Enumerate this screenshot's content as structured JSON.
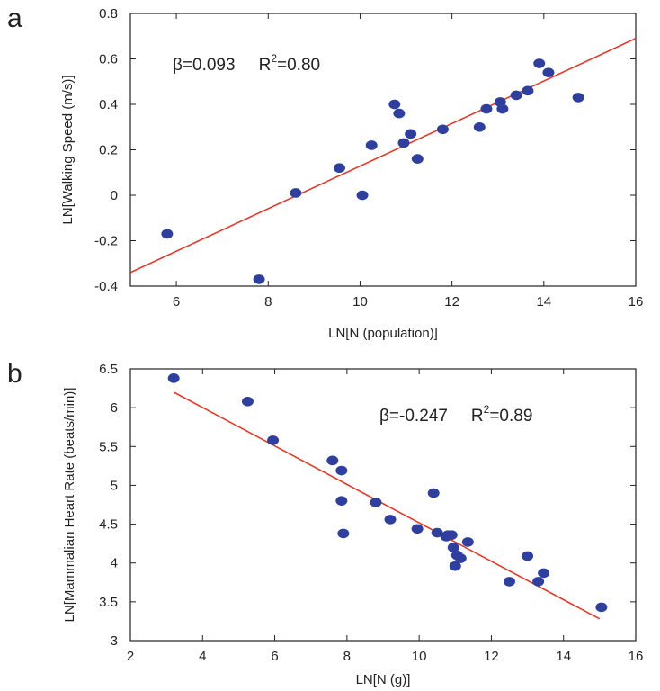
{
  "chart_data": [
    {
      "type": "scatter",
      "panel_label": "a",
      "xlabel": "LN[N (population)]",
      "ylabel": "LN[Walking Speed (m/s)]",
      "xlim": [
        5,
        16
      ],
      "ylim": [
        -0.4,
        0.8
      ],
      "xticks": [
        6,
        8,
        10,
        12,
        14,
        16
      ],
      "yticks": [
        -0.4,
        -0.2,
        0,
        0.2,
        0.4,
        0.6,
        0.8
      ],
      "xtick_labels": [
        "6",
        "8",
        "10",
        "12",
        "14",
        "16"
      ],
      "ytick_labels": [
        "-0.4",
        "-0.2",
        "0",
        "0.2",
        "0.4",
        "0.6",
        "0.8"
      ],
      "grid": false,
      "annotation": {
        "beta": "β=0.093",
        "r2_base": "R",
        "r2_sup": "2",
        "r2_value": "=0.80"
      },
      "fit_line": {
        "x": [
          5,
          16
        ],
        "y": [
          -0.34,
          0.69
        ]
      },
      "point_color": "#2e3f9e",
      "line_color": "#e03a2a",
      "x": [
        5.8,
        7.8,
        8.6,
        9.55,
        10.05,
        10.25,
        10.75,
        10.85,
        10.95,
        11.1,
        11.25,
        11.8,
        12.6,
        12.75,
        13.05,
        13.1,
        13.4,
        13.65,
        13.9,
        14.1,
        14.75
      ],
      "y": [
        -0.17,
        -0.37,
        0.01,
        0.12,
        0.0,
        0.22,
        0.4,
        0.36,
        0.23,
        0.27,
        0.16,
        0.29,
        0.3,
        0.38,
        0.41,
        0.38,
        0.44,
        0.46,
        0.58,
        0.54,
        0.43
      ]
    },
    {
      "type": "scatter",
      "panel_label": "b",
      "xlabel": "LN[N (g)]",
      "ylabel": "LN[Mammalian Heart Rate (beats/min)]",
      "xlim": [
        2,
        16
      ],
      "ylim": [
        3,
        6.5
      ],
      "xticks": [
        2,
        4,
        6,
        8,
        10,
        12,
        14,
        16
      ],
      "yticks": [
        3,
        3.5,
        4,
        4.5,
        5,
        5.5,
        6,
        6.5
      ],
      "xtick_labels": [
        "2",
        "4",
        "6",
        "8",
        "10",
        "12",
        "14",
        "16"
      ],
      "ytick_labels": [
        "3",
        "3.5",
        "4",
        "4.5",
        "5",
        "5.5",
        "6",
        "6.5"
      ],
      "grid": false,
      "annotation": {
        "beta": "β=-0.247",
        "r2_base": "R",
        "r2_sup": "2",
        "r2_value": "=0.89"
      },
      "fit_line": {
        "x": [
          3.2,
          15.0
        ],
        "y": [
          6.2,
          3.28
        ]
      },
      "point_color": "#2e3f9e",
      "line_color": "#e03a2a",
      "x": [
        3.2,
        5.25,
        5.95,
        7.6,
        7.85,
        7.85,
        7.9,
        8.8,
        9.2,
        9.95,
        10.4,
        10.5,
        10.75,
        10.8,
        10.9,
        10.95,
        11.0,
        11.05,
        11.15,
        11.35,
        12.5,
        13.0,
        13.3,
        13.45,
        15.05
      ],
      "y": [
        6.38,
        6.08,
        5.58,
        5.32,
        5.19,
        4.8,
        4.38,
        4.78,
        4.56,
        4.44,
        4.9,
        4.39,
        4.34,
        4.36,
        4.36,
        4.2,
        3.96,
        4.1,
        4.06,
        4.27,
        3.76,
        4.09,
        3.76,
        3.87,
        3.43
      ]
    }
  ]
}
